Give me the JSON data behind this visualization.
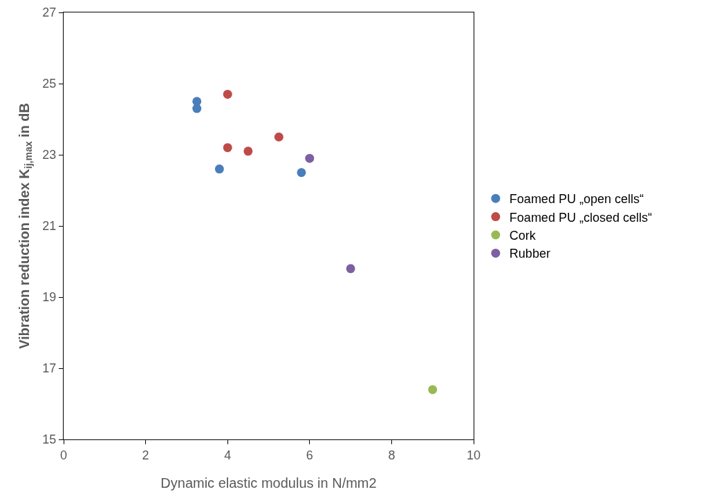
{
  "chart_data": {
    "type": "scatter",
    "xlabel": "Dynamic elastic modulus in N/mm2",
    "ylabel": "Vibration reduction index K$_{ij,max}$ in dB",
    "series": [
      {
        "name": "Foamed PU „open cells“",
        "color": "#4a7ebb",
        "x": [
          3.25,
          3.25,
          3.8,
          5.8
        ],
        "values": [
          24.5,
          24.3,
          22.6,
          22.5
        ]
      },
      {
        "name": "Foamed PU „closed cells“",
        "color": "#be4b48",
        "x": [
          4,
          4,
          4.5,
          5.25
        ],
        "values": [
          24.7,
          23.2,
          23.1,
          23.5
        ]
      },
      {
        "name": "Cork",
        "color": "#98b954",
        "x": [
          9
        ],
        "values": [
          16.4
        ]
      },
      {
        "name": "Rubber",
        "color": "#7d60a0",
        "x": [
          6,
          7
        ],
        "values": [
          22.9,
          19.8
        ]
      }
    ],
    "xlim": [
      0,
      10
    ],
    "xticks": [
      0,
      2,
      4,
      6,
      8,
      10
    ],
    "ylim": [
      15,
      27
    ],
    "yticks": [
      15,
      17,
      19,
      21,
      23,
      25,
      27
    ],
    "grid": false,
    "legend": "right",
    "marker": "circle"
  }
}
